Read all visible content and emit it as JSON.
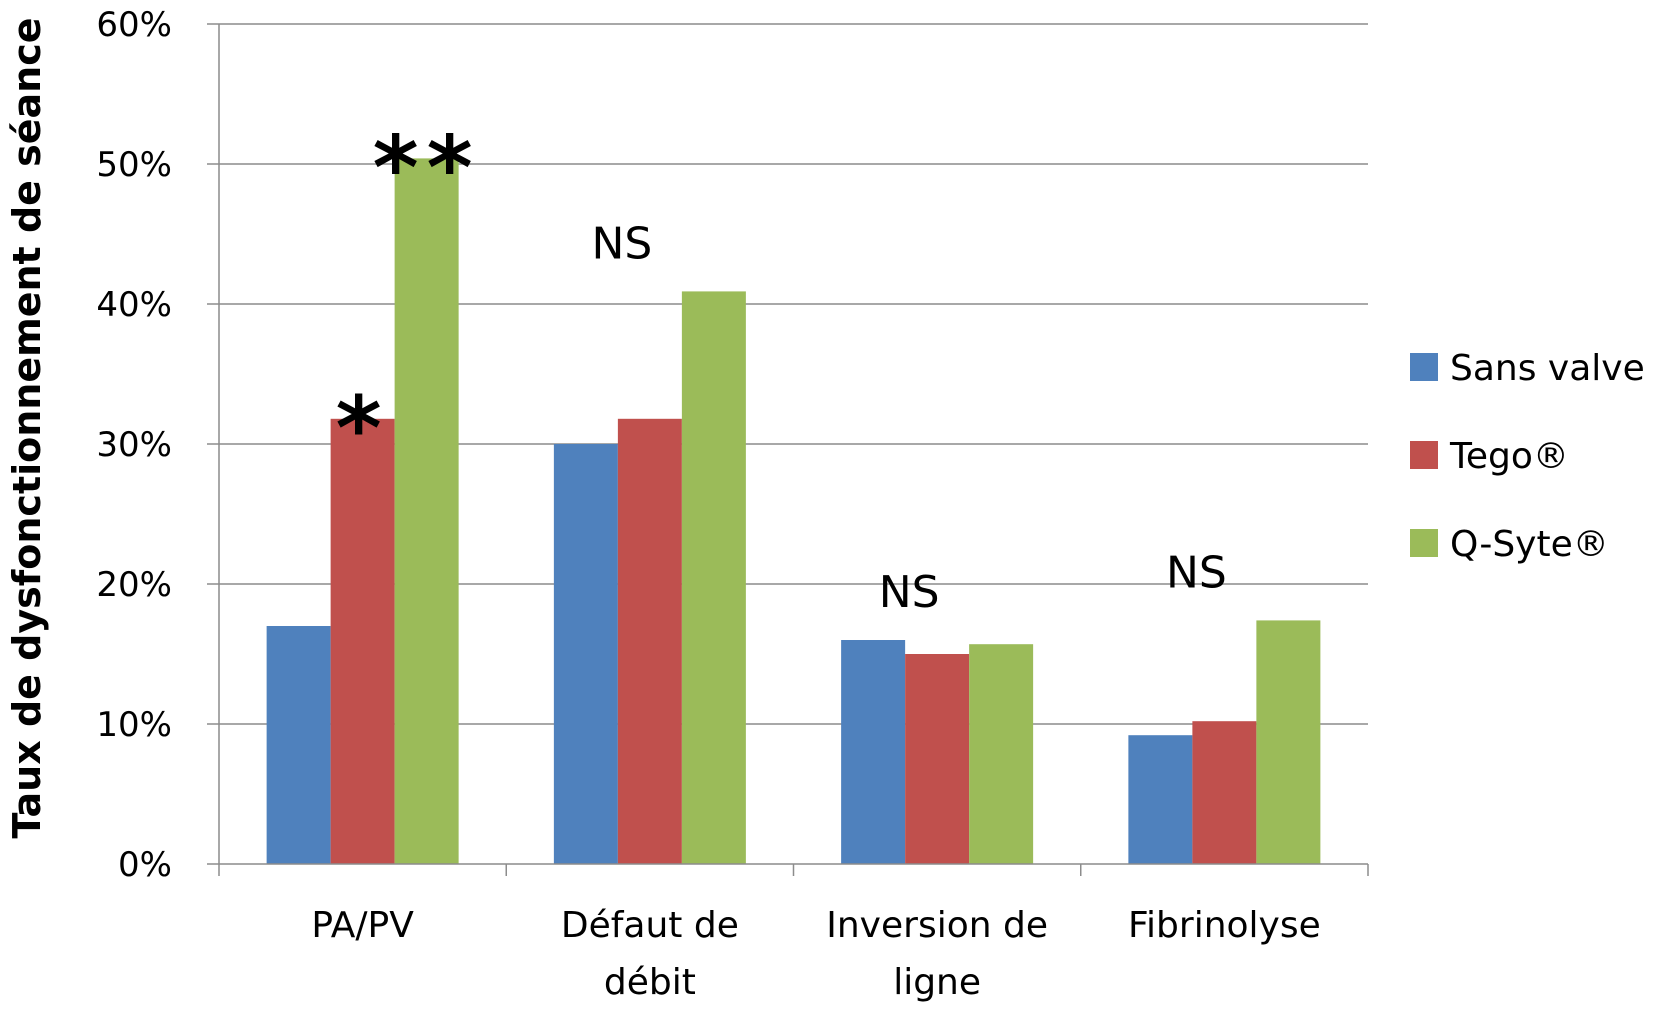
{
  "chart_data": {
    "type": "bar",
    "title": "",
    "xlabel": "",
    "ylabel": "Taux de dysfonctionnement de séance",
    "ylim": [
      0,
      0.6
    ],
    "yticks": [
      "0%",
      "10%",
      "20%",
      "30%",
      "40%",
      "50%",
      "60%"
    ],
    "grid": true,
    "legend_position": "right",
    "categories": [
      [
        "PA/PV"
      ],
      [
        "Défaut de",
        "débit"
      ],
      [
        "Inversion de",
        "ligne"
      ],
      [
        "Fibrinolyse"
      ]
    ],
    "series": [
      {
        "name": "Sans valve",
        "color": "#4f81bd",
        "values": [
          0.17,
          0.3,
          0.16,
          0.092
        ]
      },
      {
        "name": "Tego®",
        "color": "#c0504d",
        "values": [
          0.318,
          0.318,
          0.15,
          0.102
        ]
      },
      {
        "name": "Q-Syte®",
        "color": "#9bbb59",
        "values": [
          0.504,
          0.409,
          0.157,
          0.174
        ]
      }
    ],
    "annotations": [
      {
        "category": 0,
        "series": 1,
        "text": "*"
      },
      {
        "category": 0,
        "series": 2,
        "text": "**"
      },
      {
        "category": 1,
        "text": "NS"
      },
      {
        "category": 2,
        "text": "NS"
      },
      {
        "category": 3,
        "text": "NS"
      }
    ]
  }
}
